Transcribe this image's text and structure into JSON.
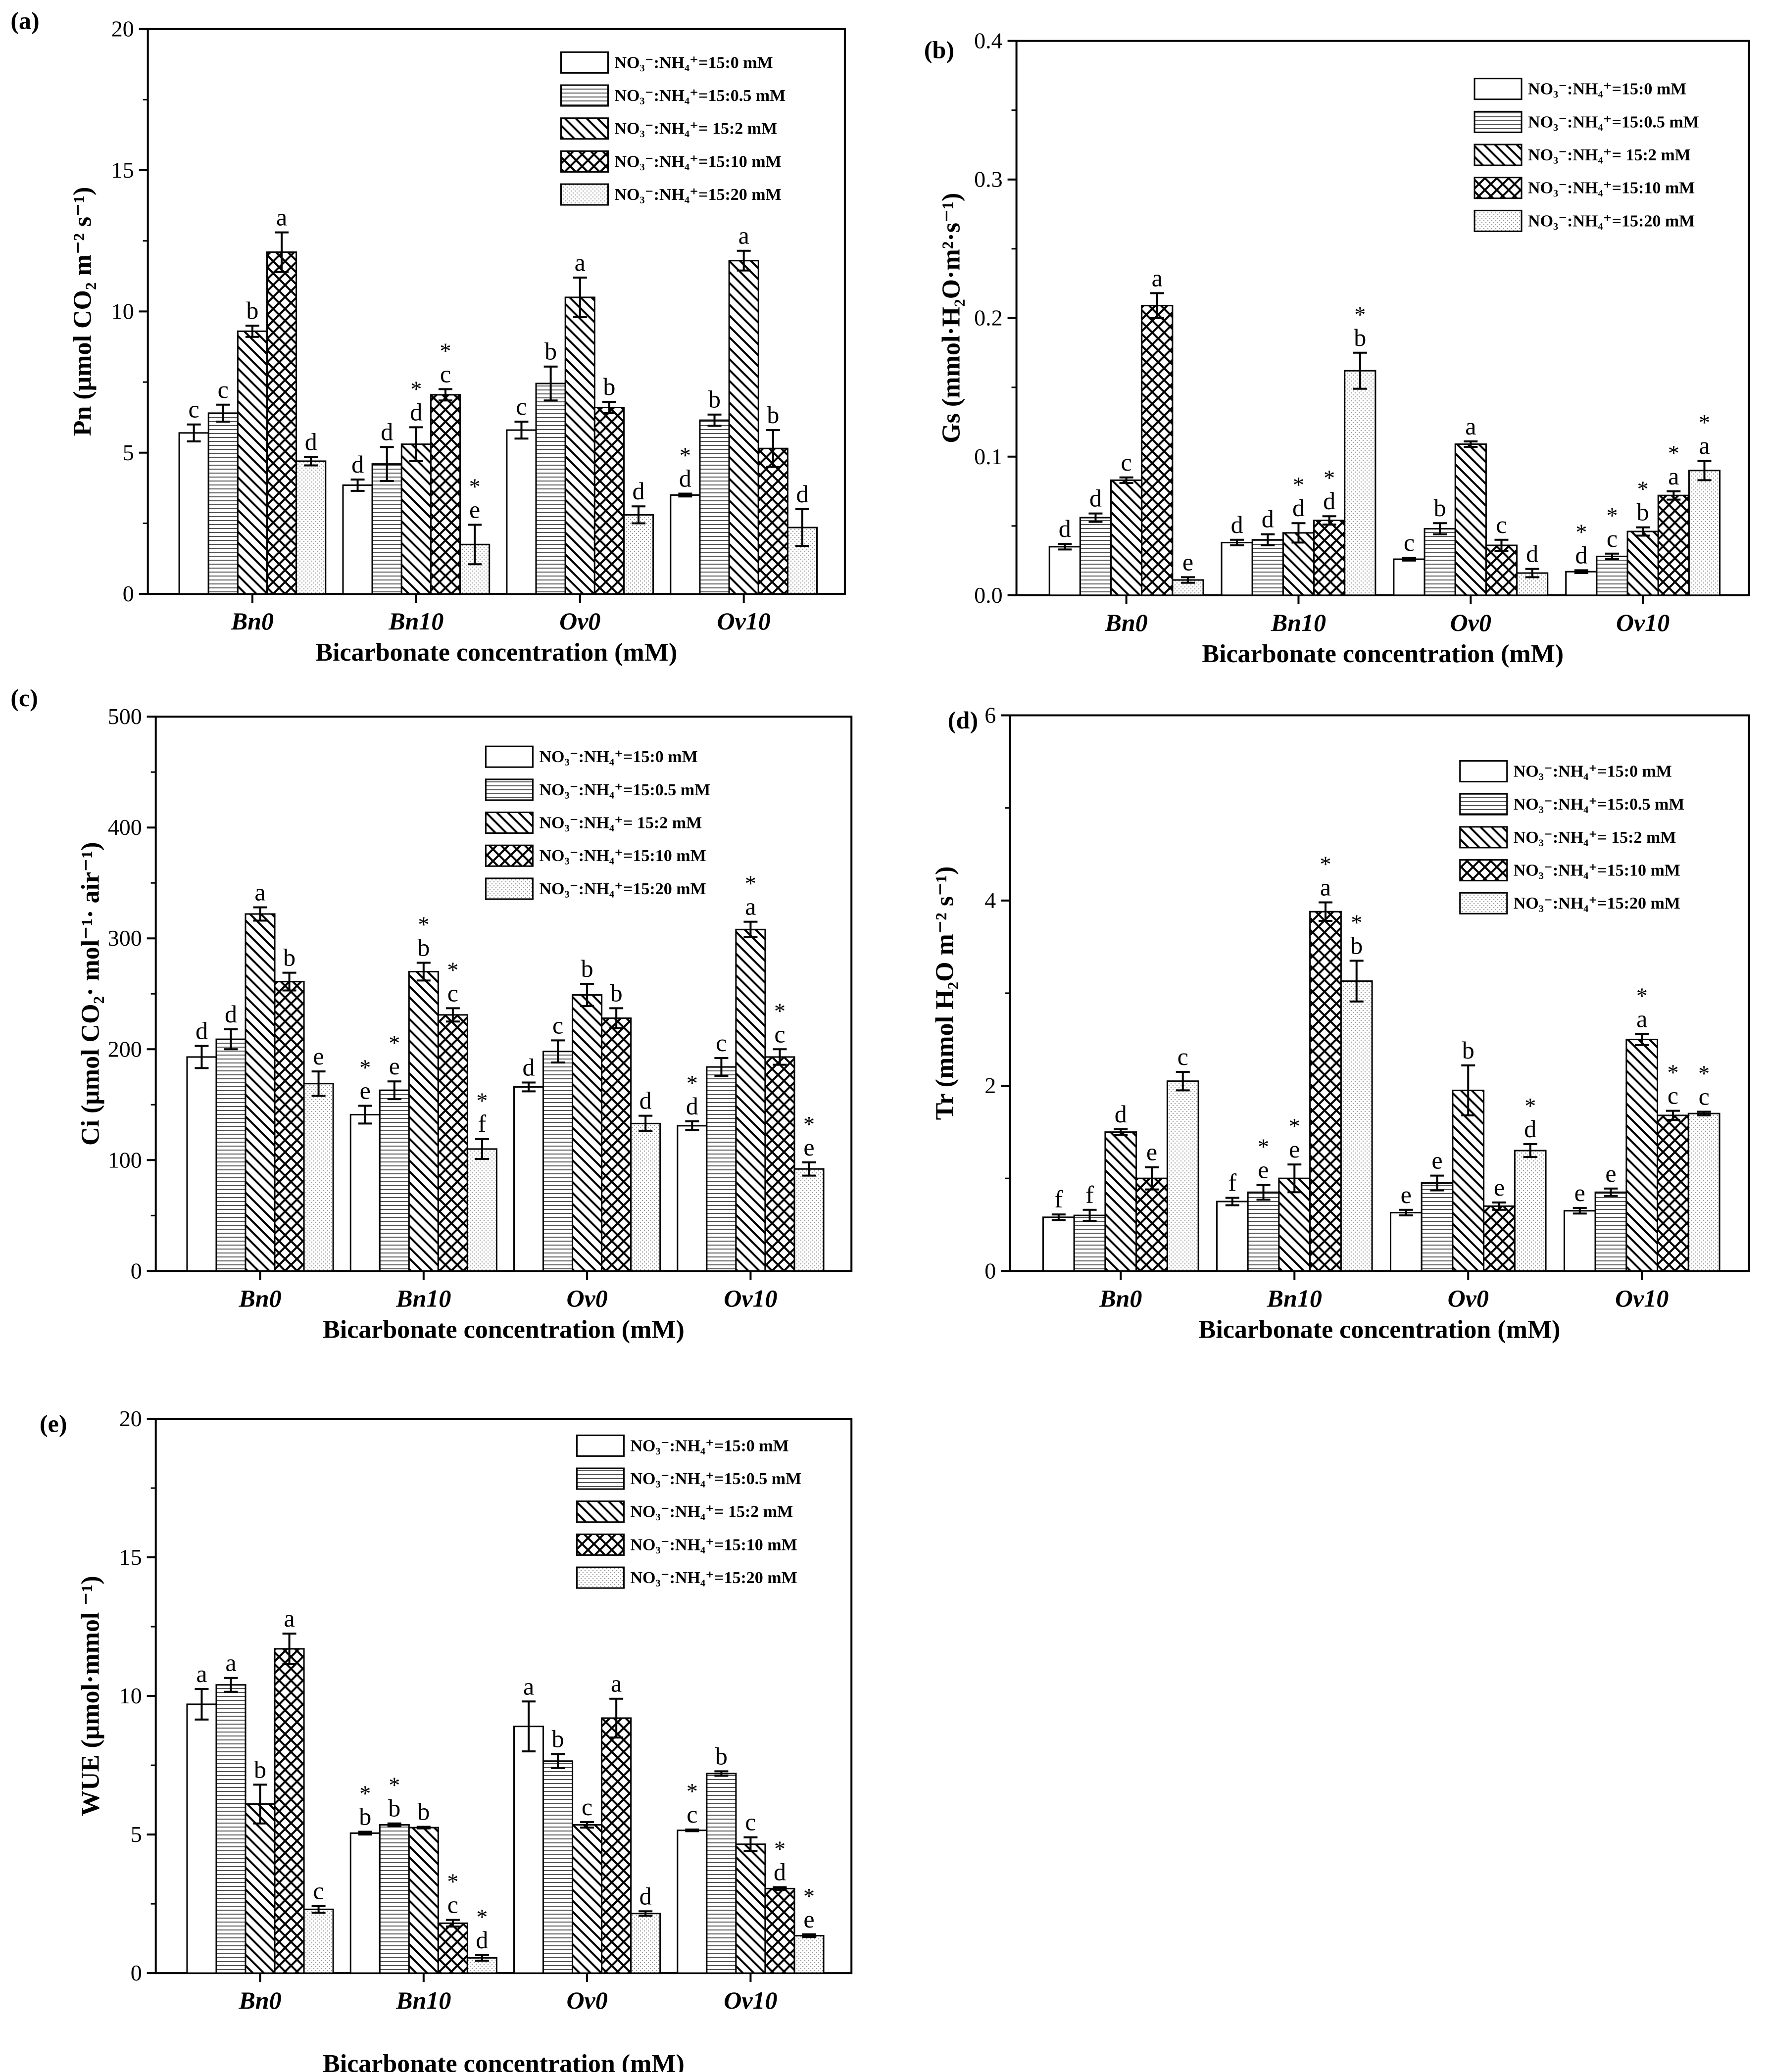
{
  "legend": [
    "NO₃⁻:NH₄⁺=15:0 mM",
    "NO₃⁻:NH₄⁺=15:0.5 mM",
    "NO₃⁻:NH₄⁺= 15:2 mM",
    "NO₃⁻:NH₄⁺=15:10 mM",
    "NO₃⁻:NH₄⁺=15:20 mM"
  ],
  "xlabel": "Bicarbonate concentration (mM)",
  "groups": [
    "Bn0",
    "Bn10",
    "Ov0",
    "Ov10"
  ],
  "chart_data": [
    {
      "type": "bar",
      "panel": "(a)",
      "ylabel": "Pn (μmol CO₂ m⁻² s⁻¹)",
      "ylim": [
        0,
        20
      ],
      "yticks": [
        "0",
        "5",
        "10",
        "15",
        "20"
      ],
      "values": [
        [
          5.7,
          6.4,
          9.3,
          12.1,
          4.7
        ],
        [
          3.85,
          4.6,
          5.3,
          7.05,
          1.75
        ],
        [
          5.8,
          7.45,
          10.5,
          6.6,
          2.8
        ],
        [
          3.5,
          6.15,
          11.8,
          5.15,
          2.35
        ]
      ],
      "errors": [
        [
          0.3,
          0.3,
          0.2,
          0.7,
          0.15
        ],
        [
          0.2,
          0.6,
          0.6,
          0.2,
          0.7
        ],
        [
          0.3,
          0.6,
          0.7,
          0.2,
          0.3
        ],
        [
          0.05,
          0.2,
          0.35,
          0.65,
          0.65
        ]
      ],
      "letters": [
        [
          "c",
          "c",
          "b",
          "a",
          "d"
        ],
        [
          "d",
          "d",
          "d",
          "c",
          "e"
        ],
        [
          "c",
          "b",
          "a",
          "b",
          "d"
        ],
        [
          "d",
          "b",
          "a",
          "b",
          "d"
        ]
      ],
      "stars": [
        [
          0,
          0,
          0,
          0,
          0
        ],
        [
          0,
          0,
          1,
          1,
          1
        ],
        [
          0,
          0,
          0,
          0,
          0
        ],
        [
          1,
          0,
          0,
          0,
          0
        ]
      ]
    },
    {
      "type": "bar",
      "panel": "(b)",
      "ylabel": "Gs (mmol·H₂O·m²·s⁻¹)",
      "ylim": [
        0,
        0.4
      ],
      "yticks": [
        "0.0",
        "0.1",
        "0.2",
        "0.3",
        "0.4"
      ],
      "values": [
        [
          0.035,
          0.056,
          0.083,
          0.209,
          0.011
        ],
        [
          0.038,
          0.04,
          0.045,
          0.054,
          0.162
        ],
        [
          0.026,
          0.048,
          0.109,
          0.036,
          0.016
        ],
        [
          0.017,
          0.028,
          0.046,
          0.072,
          0.09
        ]
      ],
      "errors": [
        [
          0.002,
          0.003,
          0.002,
          0.009,
          0.002
        ],
        [
          0.002,
          0.004,
          0.007,
          0.003,
          0.013
        ],
        [
          0.001,
          0.004,
          0.002,
          0.004,
          0.003
        ],
        [
          0.001,
          0.002,
          0.003,
          0.003,
          0.007
        ]
      ],
      "letters": [
        [
          "d",
          "d",
          "c",
          "a",
          "e"
        ],
        [
          "d",
          "d",
          "d",
          "d",
          "b"
        ],
        [
          "c",
          "b",
          "a",
          "c",
          "d"
        ],
        [
          "d",
          "c",
          "b",
          "a",
          "a"
        ]
      ],
      "stars": [
        [
          0,
          0,
          0,
          0,
          0
        ],
        [
          0,
          0,
          1,
          1,
          1
        ],
        [
          0,
          0,
          0,
          0,
          0
        ],
        [
          1,
          1,
          1,
          1,
          1
        ]
      ]
    },
    {
      "type": "bar",
      "panel": "(c)",
      "ylabel": "Ci (μmol CO₂· mol⁻¹· air⁻¹)",
      "ylim": [
        0,
        500
      ],
      "yticks": [
        "0",
        "100",
        "200",
        "300",
        "400",
        "500"
      ],
      "values": [
        [
          193,
          209,
          322,
          261,
          169
        ],
        [
          141,
          163,
          270,
          231,
          110
        ],
        [
          166,
          198,
          249,
          228,
          133
        ],
        [
          131,
          184,
          308,
          193,
          92
        ]
      ],
      "errors": [
        [
          10,
          9,
          6,
          8,
          11
        ],
        [
          8,
          8,
          8,
          6,
          9
        ],
        [
          4,
          10,
          10,
          9,
          7
        ],
        [
          4,
          8,
          7,
          7,
          6
        ]
      ],
      "letters": [
        [
          "d",
          "d",
          "a",
          "b",
          "e"
        ],
        [
          "e",
          "e",
          "b",
          "c",
          "f"
        ],
        [
          "d",
          "c",
          "b",
          "b",
          "d"
        ],
        [
          "d",
          "c",
          "a",
          "c",
          "e"
        ]
      ],
      "stars": [
        [
          0,
          0,
          0,
          0,
          0
        ],
        [
          1,
          1,
          1,
          1,
          1
        ],
        [
          0,
          0,
          0,
          0,
          0
        ],
        [
          1,
          0,
          1,
          1,
          1
        ]
      ]
    },
    {
      "type": "bar",
      "panel": "(d)",
      "ylabel": "Tr (mmol H₂O m⁻² s⁻¹)",
      "ylim": [
        0,
        6
      ],
      "yticks": [
        "0",
        "2",
        "4",
        "6"
      ],
      "values": [
        [
          0.58,
          0.6,
          1.5,
          1.0,
          2.05
        ],
        [
          0.75,
          0.85,
          1.0,
          3.88,
          3.13
        ],
        [
          0.63,
          0.95,
          1.95,
          0.7,
          1.3
        ],
        [
          0.65,
          0.85,
          2.5,
          1.68,
          1.7
        ]
      ],
      "errors": [
        [
          0.03,
          0.06,
          0.03,
          0.12,
          0.1
        ],
        [
          0.04,
          0.08,
          0.15,
          0.1,
          0.22
        ],
        [
          0.03,
          0.08,
          0.27,
          0.04,
          0.07
        ],
        [
          0.03,
          0.04,
          0.06,
          0.05,
          0.02
        ]
      ],
      "letters": [
        [
          "f",
          "f",
          "d",
          "e",
          "c"
        ],
        [
          "f",
          "e",
          "e",
          "a",
          "b"
        ],
        [
          "e",
          "e",
          "b",
          "e",
          "d"
        ],
        [
          "e",
          "e",
          "a",
          "c",
          "c"
        ]
      ],
      "stars": [
        [
          0,
          0,
          0,
          0,
          0
        ],
        [
          0,
          1,
          1,
          1,
          1
        ],
        [
          0,
          0,
          0,
          0,
          1
        ],
        [
          0,
          0,
          1,
          1,
          1
        ]
      ]
    },
    {
      "type": "bar",
      "panel": "(e)",
      "ylabel": "WUE (μmol·mmol ⁻¹)",
      "ylim": [
        0,
        20
      ],
      "yticks": [
        "0",
        "5",
        "10",
        "15",
        "20"
      ],
      "values": [
        [
          9.7,
          10.4,
          6.1,
          11.7,
          2.3
        ],
        [
          5.05,
          5.35,
          5.25,
          1.8,
          0.55
        ],
        [
          8.9,
          7.65,
          5.35,
          9.2,
          2.15
        ],
        [
          5.15,
          7.2,
          4.65,
          3.05,
          1.35
        ]
      ],
      "errors": [
        [
          0.55,
          0.25,
          0.7,
          0.55,
          0.12
        ],
        [
          0.05,
          0.05,
          0.03,
          0.12,
          0.1
        ],
        [
          0.9,
          0.25,
          0.1,
          0.7,
          0.08
        ],
        [
          0.03,
          0.08,
          0.25,
          0.05,
          0.05
        ]
      ],
      "letters": [
        [
          "a",
          "a",
          "b",
          "a",
          "c"
        ],
        [
          "b",
          "b",
          "b",
          "c",
          "d"
        ],
        [
          "a",
          "b",
          "c",
          "a",
          "d"
        ],
        [
          "c",
          "b",
          "c",
          "d",
          "e"
        ]
      ],
      "stars": [
        [
          0,
          0,
          0,
          0,
          0
        ],
        [
          1,
          1,
          0,
          1,
          1
        ],
        [
          0,
          0,
          0,
          0,
          0
        ],
        [
          1,
          0,
          0,
          1,
          1
        ]
      ]
    }
  ]
}
